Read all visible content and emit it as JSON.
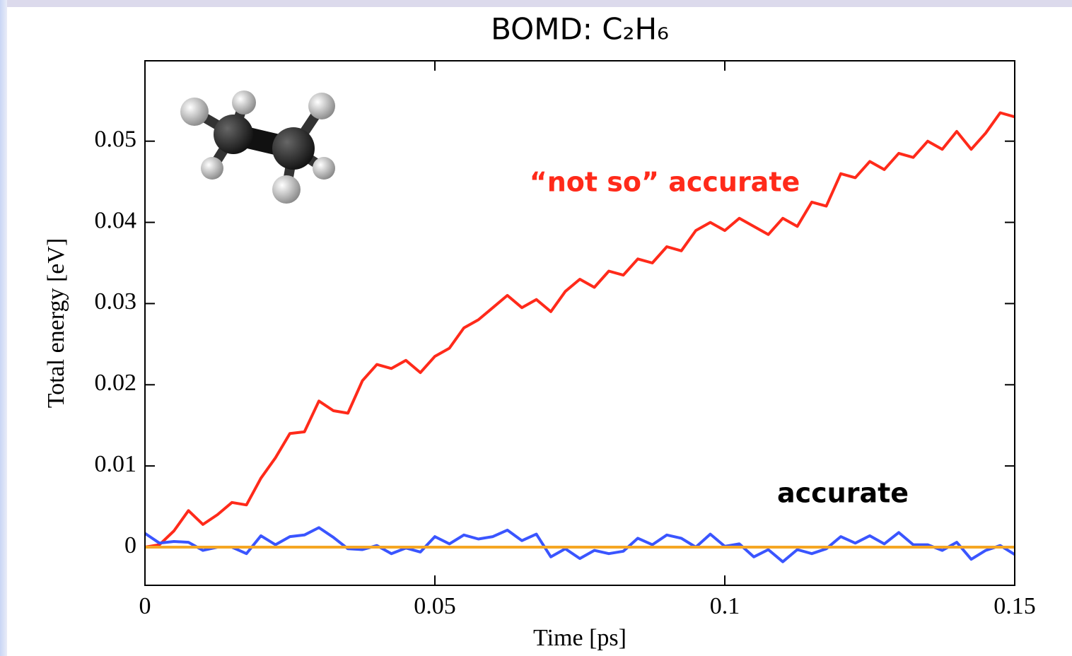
{
  "chart_data": {
    "type": "line",
    "title": "BOMD: C₂H₆",
    "x_label": "Time [ps]",
    "y_label": "Total energy [eV]",
    "xlim": [
      0,
      0.15
    ],
    "ylim": [
      -0.0047,
      0.0599
    ],
    "xticks": [
      0,
      0.05,
      0.1,
      0.15
    ],
    "yticks": [
      0,
      0.01,
      0.02,
      0.03,
      0.04,
      0.05
    ],
    "annotations": [
      {
        "text": "“not so” accurate",
        "color": "#ff2a1a"
      },
      {
        "text": "accurate",
        "color": "#000000"
      }
    ],
    "x": [
      0,
      0.0025,
      0.005,
      0.0075,
      0.01,
      0.0125,
      0.015,
      0.0175,
      0.02,
      0.0225,
      0.025,
      0.0275,
      0.03,
      0.0325,
      0.035,
      0.0375,
      0.04,
      0.0425,
      0.045,
      0.0475,
      0.05,
      0.0525,
      0.055,
      0.0575,
      0.06,
      0.0625,
      0.065,
      0.0675,
      0.07,
      0.0725,
      0.075,
      0.0775,
      0.08,
      0.0825,
      0.085,
      0.0875,
      0.09,
      0.0925,
      0.095,
      0.0975,
      0.1,
      0.1025,
      0.105,
      0.1075,
      0.11,
      0.1125,
      0.115,
      0.1175,
      0.12,
      0.1225,
      0.125,
      0.1275,
      0.13,
      0.1325,
      0.135,
      0.1375,
      0.14,
      0.1425,
      0.145,
      0.1475,
      0.15
    ],
    "series": [
      {
        "color": "#ff2a1a",
        "values": [
          0,
          0.0003,
          0.002,
          0.0045,
          0.0028,
          0.004,
          0.0055,
          0.0052,
          0.0085,
          0.011,
          0.014,
          0.0142,
          0.018,
          0.0168,
          0.0165,
          0.0205,
          0.0225,
          0.022,
          0.023,
          0.0215,
          0.0235,
          0.0245,
          0.027,
          0.028,
          0.0295,
          0.031,
          0.0295,
          0.0305,
          0.029,
          0.0315,
          0.033,
          0.032,
          0.034,
          0.0335,
          0.0355,
          0.035,
          0.037,
          0.0365,
          0.039,
          0.04,
          0.039,
          0.0405,
          0.0395,
          0.0385,
          0.0405,
          0.0395,
          0.0425,
          0.042,
          0.046,
          0.0455,
          0.0475,
          0.0465,
          0.0485,
          0.048,
          0.05,
          0.049,
          0.0512,
          0.049,
          0.051,
          0.0535,
          0.053
        ]
      },
      {
        "color": "#3a55ff",
        "values": [
          0.0017,
          0.0005,
          0.0007,
          0.0006,
          -0.0004,
          0,
          0,
          -0.0008,
          0.0014,
          0.0003,
          0.0013,
          0.0015,
          0.0024,
          0.0012,
          -0.0002,
          -0.0003,
          0.0002,
          -0.0008,
          -0.0001,
          -0.0006,
          0.0013,
          0.0004,
          0.0015,
          0.001,
          0.0013,
          0.0021,
          0.0008,
          0.0016,
          -0.0012,
          -0.0002,
          -0.0014,
          -0.0004,
          -0.0008,
          -0.0005,
          0.0011,
          0.0003,
          0.0015,
          0.0011,
          0,
          0.0016,
          0.0001,
          0.0004,
          -0.0012,
          -0.0003,
          -0.0018,
          -0.0003,
          -0.0008,
          -0.0002,
          0.0013,
          0.0005,
          0.0014,
          0.0004,
          0.0018,
          0.0003,
          0.0003,
          -0.0004,
          0.0006,
          -0.0015,
          -0.0004,
          0.0002,
          -0.0009
        ]
      },
      {
        "color": "#f5a623",
        "x": [
          0,
          0.15
        ],
        "values": [
          0,
          0
        ]
      }
    ]
  }
}
